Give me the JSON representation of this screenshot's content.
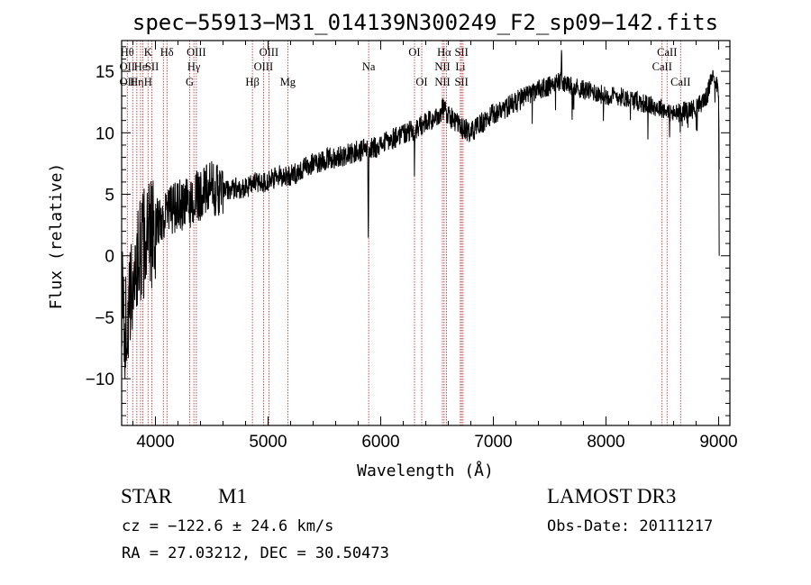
{
  "footer": {
    "object_class": "STAR",
    "subclass": "M1",
    "redshift": "cz = −122.6 ± 24.6 km/s",
    "coords": "RA =  27.03212, DEC =  30.50473",
    "survey": "LAMOST DR3",
    "obs_date": "Obs-Date: 20111217"
  },
  "colors": {
    "line_marker": "#b22222",
    "spectrum": "#000000",
    "axis": "#000000"
  },
  "chart_data": {
    "type": "line",
    "title": "spec−55913−M31_014139N300249_F2_sp09−142.fits",
    "xlabel": "Wavelength (Å)",
    "ylabel": "Flux (relative)",
    "xlim": [
      3700,
      9100
    ],
    "ylim": [
      -13.8,
      17.5
    ],
    "xticks": [
      4000,
      5000,
      6000,
      7000,
      8000,
      9000
    ],
    "xtick_labels": [
      "4000",
      "5000",
      "6000",
      "7000",
      "8000",
      "9000"
    ],
    "yticks": [
      -10,
      -5,
      0,
      5,
      10,
      15
    ],
    "ytick_labels": [
      "−10",
      "−5",
      "0",
      "5",
      "10",
      "15"
    ],
    "spectrum_anchors": [
      [
        3700,
        -3
      ],
      [
        3730,
        -6
      ],
      [
        3760,
        -5
      ],
      [
        3800,
        -2
      ],
      [
        3850,
        0
      ],
      [
        3900,
        1
      ],
      [
        3950,
        1.5
      ],
      [
        4000,
        2.5
      ],
      [
        4100,
        3.5
      ],
      [
        4200,
        4
      ],
      [
        4300,
        4.2
      ],
      [
        4400,
        5
      ],
      [
        4500,
        5.5
      ],
      [
        4600,
        5.2
      ],
      [
        4700,
        5.5
      ],
      [
        4800,
        5.5
      ],
      [
        4900,
        6
      ],
      [
        5000,
        6
      ],
      [
        5100,
        6.5
      ],
      [
        5200,
        6.5
      ],
      [
        5300,
        7
      ],
      [
        5400,
        7.5
      ],
      [
        5500,
        7.8
      ],
      [
        5600,
        8
      ],
      [
        5700,
        8.2
      ],
      [
        5800,
        8.5
      ],
      [
        5900,
        8.7
      ],
      [
        6000,
        9
      ],
      [
        6100,
        9.5
      ],
      [
        6200,
        10
      ],
      [
        6300,
        10.2
      ],
      [
        6400,
        10.8
      ],
      [
        6500,
        11.2
      ],
      [
        6550,
        12
      ],
      [
        6600,
        11.5
      ],
      [
        6650,
        11
      ],
      [
        6700,
        10.5
      ],
      [
        6800,
        10
      ],
      [
        6900,
        10.8
      ],
      [
        7000,
        11.5
      ],
      [
        7100,
        12
      ],
      [
        7200,
        12.5
      ],
      [
        7300,
        13
      ],
      [
        7400,
        13.5
      ],
      [
        7500,
        13.8
      ],
      [
        7600,
        14.2
      ],
      [
        7700,
        13.8
      ],
      [
        7800,
        13.5
      ],
      [
        7900,
        13.3
      ],
      [
        8000,
        13
      ],
      [
        8100,
        13
      ],
      [
        8200,
        12.8
      ],
      [
        8300,
        12.5
      ],
      [
        8400,
        12.2
      ],
      [
        8500,
        12
      ],
      [
        8600,
        11.5
      ],
      [
        8700,
        11.8
      ],
      [
        8800,
        12
      ],
      [
        8900,
        13
      ],
      [
        8950,
        15
      ],
      [
        9000,
        13.5
      ],
      [
        9010,
        0
      ]
    ],
    "spectrum_dips": [
      {
        "x": 5890,
        "depth": 8.5,
        "width": 6
      },
      {
        "x": 6300,
        "depth": 5,
        "width": 3
      },
      {
        "x": 7605,
        "depth": -3,
        "width": 4
      }
    ],
    "line_markers": [
      {
        "x": 3750,
        "labels": [
          {
            "text": "Hθ",
            "row": 1
          },
          {
            "text": "OII",
            "row": 2
          },
          {
            "text": "OII",
            "row": 3
          }
        ]
      },
      {
        "x": 3798,
        "labels": []
      },
      {
        "x": 3835,
        "labels": [
          {
            "text": "Hη",
            "row": 3
          }
        ]
      },
      {
        "x": 3868,
        "labels": [
          {
            "text": "He",
            "row": 2
          }
        ]
      },
      {
        "x": 3889,
        "labels": []
      },
      {
        "x": 3934,
        "labels": [
          {
            "text": "K",
            "row": 1
          },
          {
            "text": "H",
            "row": 3
          }
        ]
      },
      {
        "x": 3969,
        "labels": [
          {
            "text": "SII",
            "row": 2
          }
        ]
      },
      {
        "x": 4070,
        "labels": []
      },
      {
        "x": 4102,
        "labels": [
          {
            "text": "Hδ",
            "row": 1
          }
        ]
      },
      {
        "x": 4304,
        "labels": [
          {
            "text": "G",
            "row": 3
          }
        ]
      },
      {
        "x": 4341,
        "labels": [
          {
            "text": "Hγ",
            "row": 2
          }
        ]
      },
      {
        "x": 4363,
        "labels": [
          {
            "text": "OIII",
            "row": 1
          }
        ]
      },
      {
        "x": 4861,
        "labels": [
          {
            "text": "Hβ",
            "row": 3
          }
        ]
      },
      {
        "x": 4959,
        "labels": [
          {
            "text": "OIII",
            "row": 2
          }
        ]
      },
      {
        "x": 5007,
        "labels": [
          {
            "text": "OIII",
            "row": 1
          }
        ]
      },
      {
        "x": 5175,
        "labels": [
          {
            "text": "Mg",
            "row": 3
          }
        ]
      },
      {
        "x": 5893,
        "labels": [
          {
            "text": "Na",
            "row": 2
          }
        ]
      },
      {
        "x": 6300,
        "labels": [
          {
            "text": "OI",
            "row": 1
          }
        ]
      },
      {
        "x": 6364,
        "labels": [
          {
            "text": "OI",
            "row": 3
          }
        ]
      },
      {
        "x": 6548,
        "labels": [
          {
            "text": "NII",
            "row": 2
          },
          {
            "text": "NII",
            "row": 3
          }
        ]
      },
      {
        "x": 6563,
        "labels": [
          {
            "text": "Hα",
            "row": 1
          }
        ]
      },
      {
        "x": 6583,
        "labels": []
      },
      {
        "x": 6707,
        "labels": [
          {
            "text": "Li",
            "row": 2
          }
        ]
      },
      {
        "x": 6717,
        "labels": [
          {
            "text": "SII",
            "row": 1
          },
          {
            "text": "SII",
            "row": 3
          }
        ]
      },
      {
        "x": 6731,
        "labels": []
      },
      {
        "x": 8498,
        "labels": [
          {
            "text": "CaII",
            "row": 2
          }
        ]
      },
      {
        "x": 8542,
        "labels": [
          {
            "text": "CaII",
            "row": 1
          }
        ]
      },
      {
        "x": 8662,
        "labels": [
          {
            "text": "CaII",
            "row": 3
          }
        ]
      }
    ]
  }
}
